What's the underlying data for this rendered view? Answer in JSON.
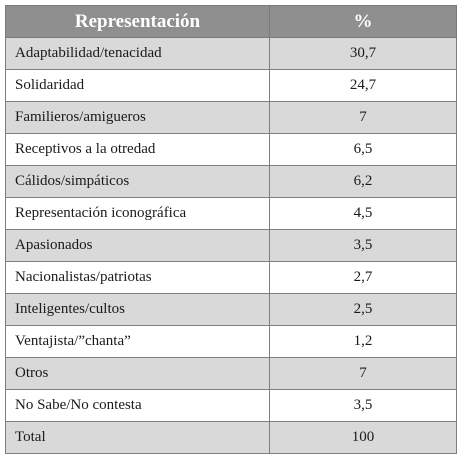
{
  "table": {
    "headers": [
      "Representación",
      "%"
    ],
    "rows": [
      {
        "label": "Adaptabilidad/tenacidad",
        "value": "30,7"
      },
      {
        "label": "Solidaridad",
        "value": "24,7"
      },
      {
        "label": "Familieros/amigueros",
        "value": "7"
      },
      {
        "label": "Receptivos a la otredad",
        "value": "6,5"
      },
      {
        "label": "Cálidos/simpáticos",
        "value": "6,2"
      },
      {
        "label": "Representación iconográfica",
        "value": "4,5"
      },
      {
        "label": "Apasionados",
        "value": "3,5"
      },
      {
        "label": "Nacionalistas/patriotas",
        "value": "2,7"
      },
      {
        "label": "Inteligentes/cultos",
        "value": "2,5"
      },
      {
        "label": "Ventajista/”chanta”",
        "value": "1,2"
      },
      {
        "label": "Otros",
        "value": "7"
      },
      {
        "label": "No Sabe/No contesta",
        "value": "3,5"
      },
      {
        "label": "Total",
        "value": "100"
      }
    ]
  },
  "colors": {
    "header_bg": "#8f8f8f",
    "stripe_bg": "#d9d9d9",
    "border": "#7f7f7f"
  }
}
